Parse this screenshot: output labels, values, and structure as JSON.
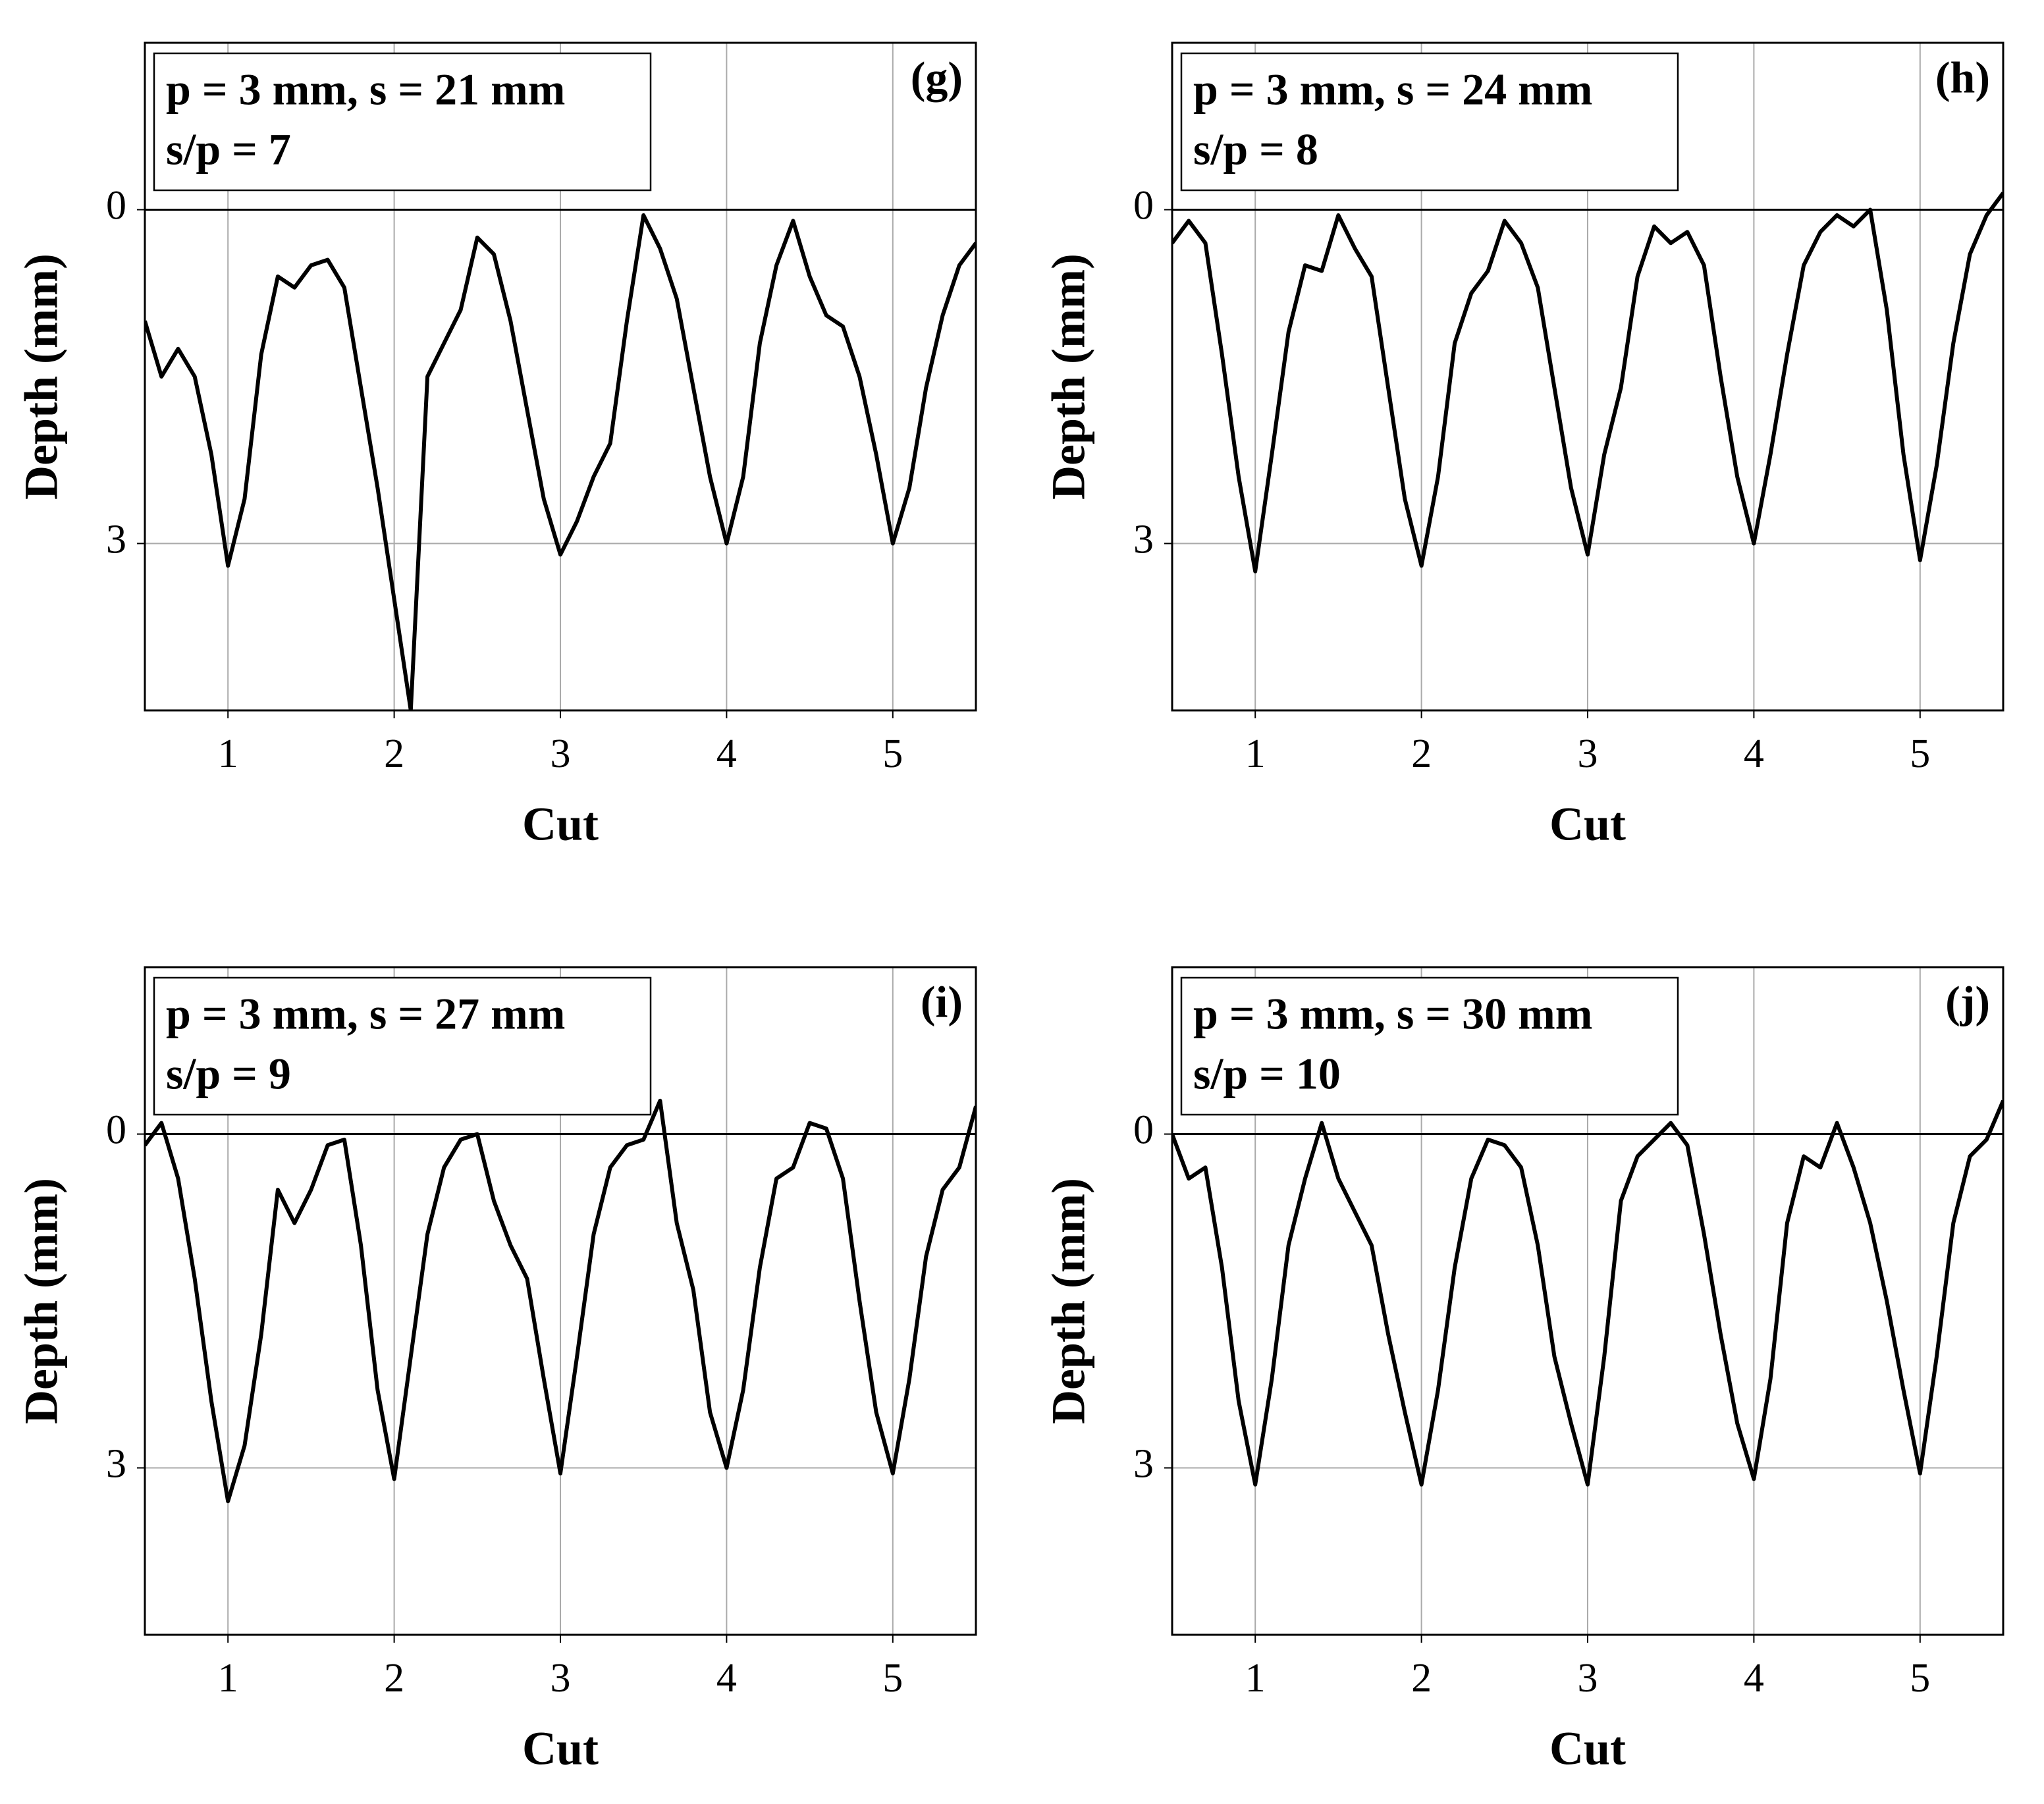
{
  "chart_data": [
    {
      "type": "line",
      "label": "(g)",
      "annotations": [
        "p = 3 mm, s = 21 mm",
        "s/p = 7"
      ],
      "x_label": "Cut",
      "y_label": "Depth (mm)",
      "x": [
        0.5,
        0.6,
        0.7,
        0.8,
        0.9,
        1.0,
        1.1,
        1.2,
        1.3,
        1.4,
        1.5,
        1.6,
        1.7,
        1.8,
        1.9,
        2.0,
        2.1,
        2.2,
        2.3,
        2.4,
        2.5,
        2.6,
        2.7,
        2.8,
        2.9,
        3.0,
        3.1,
        3.2,
        3.3,
        3.4,
        3.5,
        3.6,
        3.7,
        3.8,
        3.9,
        4.0,
        4.1,
        4.2,
        4.3,
        4.4,
        4.5,
        4.6,
        4.7,
        4.8,
        4.9,
        5.0,
        5.1,
        5.2,
        5.3,
        5.4,
        5.5
      ],
      "series": [
        {
          "color": "#000000",
          "values": [
            1.0,
            1.5,
            1.25,
            1.5,
            2.2,
            3.2,
            2.6,
            1.3,
            0.6,
            0.7,
            0.5,
            0.45,
            0.7,
            1.6,
            2.5,
            3.5,
            4.5,
            1.5,
            1.2,
            0.9,
            0.25,
            0.4,
            1.0,
            1.8,
            2.6,
            3.1,
            2.8,
            2.4,
            2.1,
            1.0,
            0.05,
            0.35,
            0.8,
            1.6,
            2.4,
            3.0,
            2.4,
            1.2,
            0.5,
            0.1,
            0.6,
            0.95,
            1.05,
            1.5,
            2.2,
            3.0,
            2.5,
            1.6,
            0.95,
            0.5,
            0.3
          ]
        }
      ],
      "xlim": [
        0.5,
        5.5
      ],
      "ylim": [
        4.5,
        -1.5
      ],
      "xticks": [
        1,
        2,
        3,
        4,
        5
      ],
      "yticks": [
        0,
        3
      ],
      "hline": 0,
      "grid": true
    },
    {
      "type": "line",
      "label": "(h)",
      "annotations": [
        "p = 3 mm, s = 24 mm",
        "s/p = 8"
      ],
      "x_label": "Cut",
      "y_label": "Depth (mm)",
      "x": [
        0.5,
        0.6,
        0.7,
        0.8,
        0.9,
        1.0,
        1.1,
        1.2,
        1.3,
        1.4,
        1.5,
        1.6,
        1.7,
        1.8,
        1.9,
        2.0,
        2.1,
        2.2,
        2.3,
        2.4,
        2.5,
        2.6,
        2.7,
        2.8,
        2.9,
        3.0,
        3.1,
        3.2,
        3.3,
        3.4,
        3.5,
        3.6,
        3.7,
        3.8,
        3.9,
        4.0,
        4.1,
        4.2,
        4.3,
        4.4,
        4.5,
        4.6,
        4.7,
        4.8,
        4.9,
        5.0,
        5.1,
        5.2,
        5.3,
        5.4,
        5.5
      ],
      "series": [
        {
          "color": "#000000",
          "values": [
            0.3,
            0.1,
            0.3,
            1.3,
            2.4,
            3.25,
            2.2,
            1.1,
            0.5,
            0.55,
            0.05,
            0.35,
            0.6,
            1.6,
            2.6,
            3.2,
            2.4,
            1.2,
            0.75,
            0.55,
            0.1,
            0.3,
            0.7,
            1.6,
            2.5,
            3.1,
            2.2,
            1.6,
            0.6,
            0.15,
            0.3,
            0.2,
            0.5,
            1.5,
            2.4,
            3.0,
            2.2,
            1.3,
            0.5,
            0.2,
            0.05,
            0.15,
            0.0,
            0.9,
            2.2,
            3.15,
            2.3,
            1.2,
            0.4,
            0.05,
            -0.15
          ]
        }
      ],
      "xlim": [
        0.5,
        5.5
      ],
      "ylim": [
        4.5,
        -1.5
      ],
      "xticks": [
        1,
        2,
        3,
        4,
        5
      ],
      "yticks": [
        0,
        3
      ],
      "hline": 0,
      "grid": true
    },
    {
      "type": "line",
      "label": "(i)",
      "annotations": [
        "p = 3 mm, s = 27 mm",
        "s/p = 9"
      ],
      "x_label": "Cut",
      "y_label": "Depth (mm)",
      "x": [
        0.5,
        0.6,
        0.7,
        0.8,
        0.9,
        1.0,
        1.1,
        1.2,
        1.3,
        1.4,
        1.5,
        1.6,
        1.7,
        1.8,
        1.9,
        2.0,
        2.1,
        2.2,
        2.3,
        2.4,
        2.5,
        2.6,
        2.7,
        2.8,
        2.9,
        3.0,
        3.1,
        3.2,
        3.3,
        3.4,
        3.5,
        3.6,
        3.7,
        3.8,
        3.9,
        4.0,
        4.1,
        4.2,
        4.3,
        4.4,
        4.5,
        4.6,
        4.7,
        4.8,
        4.9,
        5.0,
        5.1,
        5.2,
        5.3,
        5.4,
        5.5
      ],
      "series": [
        {
          "color": "#000000",
          "values": [
            0.1,
            -0.1,
            0.4,
            1.3,
            2.4,
            3.3,
            2.8,
            1.8,
            0.5,
            0.8,
            0.5,
            0.1,
            0.05,
            1.0,
            2.3,
            3.1,
            2.0,
            0.9,
            0.3,
            0.05,
            0.0,
            0.6,
            1.0,
            1.3,
            2.2,
            3.05,
            2.0,
            0.9,
            0.3,
            0.1,
            0.05,
            -0.3,
            0.8,
            1.4,
            2.5,
            3.0,
            2.3,
            1.2,
            0.4,
            0.3,
            -0.1,
            -0.05,
            0.4,
            1.5,
            2.5,
            3.05,
            2.2,
            1.1,
            0.5,
            0.3,
            -0.25
          ]
        }
      ],
      "xlim": [
        0.5,
        5.5
      ],
      "ylim": [
        4.5,
        -1.5
      ],
      "xticks": [
        1,
        2,
        3,
        4,
        5
      ],
      "yticks": [
        0,
        3
      ],
      "hline": 0,
      "grid": true
    },
    {
      "type": "line",
      "label": "(j)",
      "annotations": [
        "p = 3 mm, s = 30 mm",
        "s/p = 10"
      ],
      "x_label": "Cut",
      "y_label": "Depth (mm)",
      "x": [
        0.5,
        0.6,
        0.7,
        0.8,
        0.9,
        1.0,
        1.1,
        1.2,
        1.3,
        1.4,
        1.5,
        1.6,
        1.7,
        1.8,
        1.9,
        2.0,
        2.1,
        2.2,
        2.3,
        2.4,
        2.5,
        2.6,
        2.7,
        2.8,
        2.9,
        3.0,
        3.1,
        3.2,
        3.3,
        3.4,
        3.5,
        3.6,
        3.7,
        3.8,
        3.9,
        4.0,
        4.1,
        4.2,
        4.3,
        4.4,
        4.5,
        4.6,
        4.7,
        4.8,
        4.9,
        5.0,
        5.1,
        5.2,
        5.3,
        5.4,
        5.5
      ],
      "series": [
        {
          "color": "#000000",
          "values": [
            0.0,
            0.4,
            0.3,
            1.2,
            2.4,
            3.15,
            2.2,
            1.0,
            0.4,
            -0.1,
            0.4,
            0.7,
            1.0,
            1.8,
            2.5,
            3.15,
            2.3,
            1.2,
            0.4,
            0.05,
            0.1,
            0.3,
            1.0,
            2.0,
            2.6,
            3.15,
            2.0,
            0.6,
            0.2,
            0.05,
            -0.1,
            0.1,
            0.9,
            1.8,
            2.6,
            3.1,
            2.2,
            0.8,
            0.2,
            0.3,
            -0.1,
            0.3,
            0.8,
            1.5,
            2.3,
            3.05,
            2.0,
            0.8,
            0.2,
            0.05,
            -0.3
          ]
        }
      ],
      "xlim": [
        0.5,
        5.5
      ],
      "ylim": [
        4.5,
        -1.5
      ],
      "xticks": [
        1,
        2,
        3,
        4,
        5
      ],
      "yticks": [
        0,
        3
      ],
      "hline": 0,
      "grid": true
    }
  ]
}
